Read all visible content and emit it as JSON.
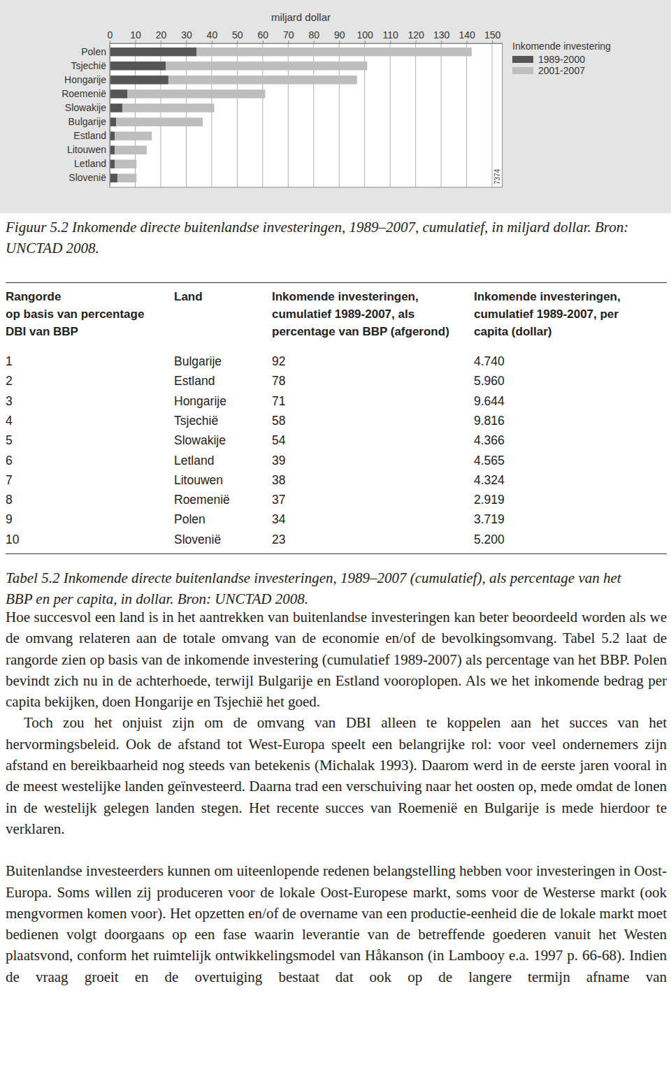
{
  "chart_data": {
    "type": "bar",
    "orientation": "horizontal",
    "stacked": true,
    "x_label": "miljard dollar",
    "legend_title": "Inkomende investering",
    "legend": "right",
    "grid": true,
    "categories": [
      "Polen",
      "Tsjechië",
      "Hongarije",
      "Roemenië",
      "Slowakije",
      "Bulgarije",
      "Estland",
      "Litouwen",
      "Letland",
      "Slovenië"
    ],
    "series": [
      {
        "name": "1989-2000",
        "color": "#555555",
        "values": [
          34,
          22,
          23,
          7,
          5,
          2.5,
          2,
          2,
          2,
          3
        ]
      },
      {
        "name": "2001-2007",
        "color": "#bdbdbd",
        "values": [
          108,
          79,
          74,
          54,
          36,
          34,
          14.5,
          12.5,
          8.5,
          7.5
        ]
      }
    ],
    "xlim": [
      0,
      154
    ],
    "xticks": [
      0,
      10,
      20,
      30,
      40,
      50,
      60,
      70,
      80,
      90,
      100,
      110,
      120,
      130,
      140,
      150
    ],
    "annotations": [
      "7374"
    ]
  },
  "figure_caption": [
    "Figuur 5.2 Inkomende directe buitenlandse investeringen, 1989–2007, cumulatief, in miljard dollar.",
    "Bron: UNCTAD 2008."
  ],
  "table": {
    "header": [
      [
        "Rangorde",
        "op basis van percentage",
        "DBI van BBP"
      ],
      [
        "Land"
      ],
      [
        "Inkomende investeringen,",
        "cumulatief 1989-2007, als",
        "percentage van BBP (afgerond)"
      ],
      [
        "Inkomende investeringen,",
        "cumulatief 1989-2007, per",
        "capita (dollar)"
      ]
    ],
    "rows": [
      [
        "1",
        "Bulgarije",
        "92",
        "4.740"
      ],
      [
        "2",
        "Estland",
        "78",
        "5.960"
      ],
      [
        "3",
        "Hongarije",
        "71",
        "9.644"
      ],
      [
        "4",
        "Tsjechië",
        "58",
        "9.816"
      ],
      [
        "5",
        "Slowakije",
        "54",
        "4.366"
      ],
      [
        "6",
        "Letland",
        "39",
        "4.565"
      ],
      [
        "7",
        "Litouwen",
        "38",
        "4.324"
      ],
      [
        "8",
        "Roemenië",
        "37",
        "2.919"
      ],
      [
        "9",
        "Polen",
        "34",
        "3.719"
      ],
      [
        "10",
        "Slovenië",
        "23",
        "5.200"
      ]
    ]
  },
  "table_caption": "Tabel 5.2 Inkomende directe buitenlandse investeringen, 1989–2007 (cumulatief), als percentage van het BBP en per capita, in dollar. Bron: UNCTAD 2008.",
  "paragraphs": [
    "Hoe succesvol een land is in het aantrekken van buitenlandse investeringen kan beter beoordeeld worden als we de omvang relateren aan de totale omvang van de economie en/of de bevolkingsomvang. Tabel 5.2 laat de rangorde zien op basis van de inkomende investering (cumulatief 1989-2007) als percentage van het BBP. Polen bevindt zich nu in de achterhoede, terwijl Bulgarije en Estland vooroplopen. Als we het inkomende bedrag per capita bekijken, doen Hongarije en Tsjechië het goed.",
    "Toch zou het onjuist zijn om de omvang van DBI alleen te koppelen aan het succes van het hervormingsbeleid. Ook de afstand tot West-Europa speelt een belangrijke rol: voor veel ondernemers zijn afstand en bereikbaarheid nog steeds van betekenis (Michalak 1993). Daarom werd in de eerste jaren vooral in de meest westelijke landen geïnvesteerd. Daarna trad een verschuiving naar het oosten op, mede omdat de lonen in de westelijk gelegen landen stegen. Het recente succes van Roemenië en Bulgarije is mede hierdoor te verklaren.",
    "Buitenlandse investeerders kunnen om uiteenlopende redenen belangstelling hebben voor investeringen in Oost-Europa. Soms willen zij produceren voor de lokale Oost-Europese markt, soms voor de Westerse markt (ook mengvormen komen voor). Het opzetten en/of de overname van een productie-eenheid die de lokale markt moet bedienen volgt doorgaans op een fase waarin leverantie van de betreffende goederen vanuit het Westen plaatsvond, conform het ruimtelijk ontwikkelingsmodel van Håkanson (in Lambooy e.a. 1997 p. 66-68). Indien de vraag groeit en de overtuiging bestaat dat ook op de langere termijn afname van"
  ]
}
